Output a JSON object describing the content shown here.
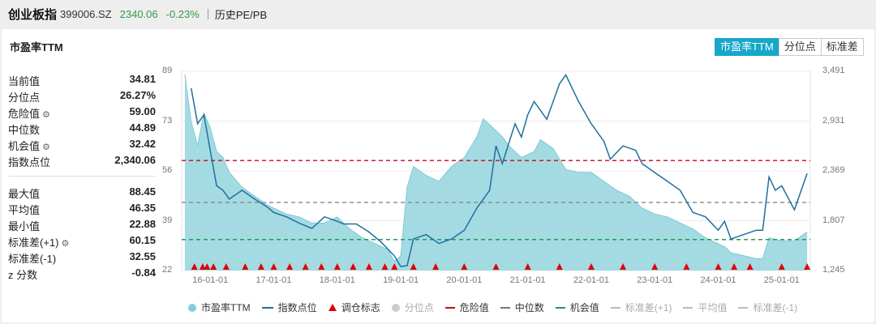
{
  "header": {
    "name": "创业板指",
    "code": "399006.SZ",
    "price": "2340.06",
    "change": "-0.23%",
    "history_link": "历史PE/PB"
  },
  "panel": {
    "title": "市盈率TTM",
    "tabs": [
      "市盈率TTM",
      "分位点",
      "标准差"
    ],
    "active_tab": "市盈率TTM"
  },
  "stats_top": [
    {
      "label": "当前值",
      "value": "34.81"
    },
    {
      "label": "分位点",
      "value": "26.27%"
    },
    {
      "label": "危险值",
      "value": "59.00",
      "gear": true
    },
    {
      "label": "中位数",
      "value": "44.89"
    },
    {
      "label": "机会值",
      "value": "32.42",
      "gear": true
    },
    {
      "label": "指数点位",
      "value": "2,340.06"
    }
  ],
  "stats_bottom": [
    {
      "label": "最大值",
      "value": "88.45"
    },
    {
      "label": "平均值",
      "value": "46.35"
    },
    {
      "label": "最小值",
      "value": "22.88"
    },
    {
      "label": "标准差(+1)",
      "value": "60.15",
      "gear": true
    },
    {
      "label": "标准差(-1)",
      "value": "32.55"
    },
    {
      "label": "z 分数",
      "value": "-0.84"
    }
  ],
  "legend": [
    {
      "label": "市盈率TTM",
      "kind": "dot",
      "color": "#7fd0db",
      "muted": false
    },
    {
      "label": "指数点位",
      "kind": "line",
      "color": "#1f6f9f",
      "muted": false
    },
    {
      "label": "调仓标志",
      "kind": "triangle",
      "color": "#e00000",
      "muted": false
    },
    {
      "label": "分位点",
      "kind": "dot",
      "color": "#cccccc",
      "muted": true
    },
    {
      "label": "危险值",
      "kind": "dash",
      "color": "#d0021b",
      "muted": false
    },
    {
      "label": "中位数",
      "kind": "dash",
      "color": "#777777",
      "muted": false
    },
    {
      "label": "机会值",
      "kind": "dash",
      "color": "#1f9b5a",
      "muted": false
    },
    {
      "label": "标准差(+1)",
      "kind": "dash",
      "color": "#bbbbbb",
      "muted": true
    },
    {
      "label": "平均值",
      "kind": "dash",
      "color": "#bbbbbb",
      "muted": true
    },
    {
      "label": "标准差(-1)",
      "kind": "dash",
      "color": "#bbbbbb",
      "muted": true
    }
  ],
  "chart_data": {
    "type": "area",
    "x_ticks": [
      "16-01-01",
      "17-01-01",
      "18-01-01",
      "19-01-01",
      "20-01-01",
      "21-01-01",
      "22-01-01",
      "23-01-01",
      "24-01-01",
      "25-01-01"
    ],
    "y_left_ticks": [
      "89",
      "73",
      "56",
      "39",
      "22"
    ],
    "y_right_ticks": [
      "3,491",
      "2,931",
      "2,369",
      "1,807",
      "1,245"
    ],
    "ylim_left": [
      22,
      89
    ],
    "ylim_right": [
      1245,
      3491
    ],
    "reference_lines": {
      "danger": 59.0,
      "median": 44.89,
      "opportunity": 32.42
    },
    "colors": {
      "pe_fill": "#9fd9e0",
      "pe_line": "#7fcad6",
      "index_line": "#1f6f9f",
      "danger": "#d0021b",
      "median": "#888888",
      "opportunity": "#1f9b5a",
      "marker": "#e00000"
    },
    "series": [
      {
        "name": "市盈率TTM",
        "x": [
          2015.6,
          2015.7,
          2015.8,
          2015.9,
          2016.0,
          2016.1,
          2016.2,
          2016.3,
          2016.5,
          2016.7,
          2016.9,
          2017.0,
          2017.2,
          2017.4,
          2017.6,
          2017.8,
          2018.0,
          2018.1,
          2018.2,
          2018.4,
          2018.6,
          2018.8,
          2018.9,
          2019.0,
          2019.1,
          2019.2,
          2019.4,
          2019.6,
          2019.8,
          2020.0,
          2020.2,
          2020.3,
          2020.5,
          2020.6,
          2020.7,
          2020.9,
          2021.1,
          2021.2,
          2021.4,
          2021.6,
          2021.8,
          2022.0,
          2022.2,
          2022.4,
          2022.6,
          2022.8,
          2023.0,
          2023.2,
          2023.4,
          2023.6,
          2023.8,
          2024.0,
          2024.1,
          2024.2,
          2024.4,
          2024.6,
          2024.7,
          2024.8,
          2025.0,
          2025.2,
          2025.4
        ],
        "y": [
          88,
          72,
          64,
          75,
          70,
          62,
          60,
          55,
          50,
          47,
          44,
          43,
          41,
          40,
          38,
          38,
          40,
          38,
          36,
          33,
          31,
          29,
          25,
          27,
          50,
          57,
          54,
          52,
          57,
          60,
          67,
          73,
          69,
          67,
          64,
          60,
          62,
          66,
          63,
          56,
          55,
          55,
          52,
          49,
          47,
          43,
          41,
          40,
          38,
          36,
          33,
          31,
          30,
          28,
          27,
          26,
          26,
          33,
          32,
          32,
          35
        ]
      },
      {
        "name": "指数点位",
        "x": [
          2015.7,
          2015.8,
          2015.9,
          2016.0,
          2016.1,
          2016.2,
          2016.3,
          2016.5,
          2016.7,
          2016.9,
          2017.0,
          2017.2,
          2017.4,
          2017.6,
          2017.8,
          2018.0,
          2018.1,
          2018.3,
          2018.5,
          2018.7,
          2018.9,
          2019.0,
          2019.1,
          2019.2,
          2019.4,
          2019.6,
          2019.8,
          2020.0,
          2020.2,
          2020.4,
          2020.5,
          2020.6,
          2020.8,
          2020.9,
          2021.0,
          2021.1,
          2021.3,
          2021.5,
          2021.6,
          2021.7,
          2021.8,
          2022.0,
          2022.2,
          2022.3,
          2022.5,
          2022.7,
          2022.8,
          2023.0,
          2023.2,
          2023.4,
          2023.6,
          2023.8,
          2024.0,
          2024.1,
          2024.2,
          2024.4,
          2024.6,
          2024.7,
          2024.8,
          2024.9,
          2025.0,
          2025.2,
          2025.4
        ],
        "y": [
          3300,
          2900,
          3000,
          2600,
          2200,
          2150,
          2050,
          2150,
          2050,
          1960,
          1900,
          1850,
          1780,
          1720,
          1850,
          1800,
          1770,
          1770,
          1680,
          1560,
          1410,
          1290,
          1300,
          1600,
          1650,
          1550,
          1600,
          1700,
          1950,
          2150,
          2650,
          2450,
          2900,
          2750,
          3000,
          3150,
          2950,
          3350,
          3450,
          3300,
          3150,
          2900,
          2700,
          2500,
          2650,
          2600,
          2450,
          2350,
          2250,
          2150,
          1900,
          1850,
          1700,
          1800,
          1600,
          1650,
          1700,
          1700,
          2300,
          2150,
          2200,
          1930,
          2340
        ]
      }
    ],
    "rebalance_markers_x": [
      2015.75,
      2015.88,
      2015.95,
      2016.05,
      2016.25,
      2016.55,
      2016.8,
      2017.0,
      2017.25,
      2017.5,
      2017.75,
      2018.0,
      2018.25,
      2018.5,
      2018.75,
      2018.9,
      2019.2,
      2019.55,
      2020.0,
      2020.5,
      2021.0,
      2021.5,
      2022.0,
      2022.5,
      2023.0,
      2023.5,
      2024.0,
      2024.25,
      2024.5,
      2025.0,
      2025.4
    ]
  }
}
